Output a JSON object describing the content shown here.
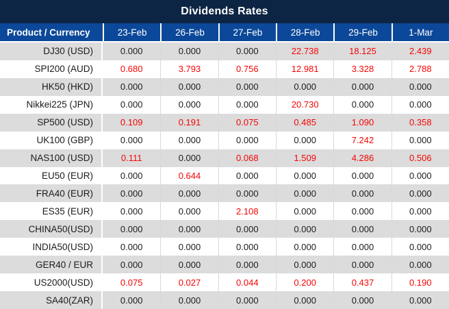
{
  "chart_data": {
    "type": "table",
    "title": "Dividends Rates",
    "columns": [
      "Product / Currency",
      "23-Feb",
      "26-Feb",
      "27-Feb",
      "28-Feb",
      "29-Feb",
      "1-Mar"
    ],
    "rows": [
      [
        "DJ30 (USD)",
        "0.000",
        "0.000",
        "0.000",
        "22.738",
        "18.125",
        "2.439"
      ],
      [
        "SPI200 (AUD)",
        "0.680",
        "3.793",
        "0.756",
        "12.981",
        "3.328",
        "2.788"
      ],
      [
        "HK50 (HKD)",
        "0.000",
        "0.000",
        "0.000",
        "0.000",
        "0.000",
        "0.000"
      ],
      [
        "Nikkei225 (JPN)",
        "0.000",
        "0.000",
        "0.000",
        "20.730",
        "0.000",
        "0.000"
      ],
      [
        "SP500 (USD)",
        "0.109",
        "0.191",
        "0.075",
        "0.485",
        "1.090",
        "0.358"
      ],
      [
        "UK100 (GBP)",
        "0.000",
        "0.000",
        "0.000",
        "0.000",
        "7.242",
        "0.000"
      ],
      [
        "NAS100 (USD)",
        "0.111",
        "0.000",
        "0.068",
        "1.509",
        "4.286",
        "0.506"
      ],
      [
        "EU50 (EUR)",
        "0.000",
        "0.644",
        "0.000",
        "0.000",
        "0.000",
        "0.000"
      ],
      [
        "FRA40 (EUR)",
        "0.000",
        "0.000",
        "0.000",
        "0.000",
        "0.000",
        "0.000"
      ],
      [
        "ES35 (EUR)",
        "0.000",
        "0.000",
        "2.108",
        "0.000",
        "0.000",
        "0.000"
      ],
      [
        "CHINA50(USD)",
        "0.000",
        "0.000",
        "0.000",
        "0.000",
        "0.000",
        "0.000"
      ],
      [
        "INDIA50(USD)",
        "0.000",
        "0.000",
        "0.000",
        "0.000",
        "0.000",
        "0.000"
      ],
      [
        "GER40 / EUR",
        "0.000",
        "0.000",
        "0.000",
        "0.000",
        "0.000",
        "0.000"
      ],
      [
        "US2000(USD)",
        "0.075",
        "0.027",
        "0.044",
        "0.200",
        "0.437",
        "0.190"
      ],
      [
        "SA40(ZAR)",
        "0.000",
        "0.000",
        "0.000",
        "0.000",
        "0.000",
        "0.000"
      ]
    ],
    "layout_hints": {
      "legend": "none",
      "zero_value_color": "#1b1b1b",
      "nonzero_value_color": "#f40505",
      "alternating_row_shading": true
    }
  },
  "colors": {
    "title_bg": "#0d2544",
    "header_bg": "#0c4899",
    "row_alt_bg": "#dcdcdc",
    "row_bg": "#ffffff",
    "zero_text": "#1b1b1b",
    "nonzero_text": "#f40505"
  }
}
